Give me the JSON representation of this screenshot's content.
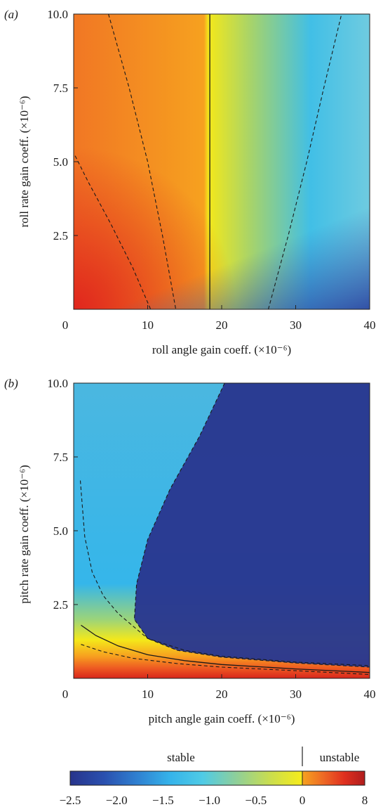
{
  "chart_data": [
    {
      "type": "heatmap",
      "panel_label": "(a)",
      "xlabel": "roll angle gain coeff. (×10⁻⁶)",
      "ylabel": "roll rate gain coeff. (×10⁻⁶)",
      "xlim": [
        0,
        40
      ],
      "ylim": [
        0,
        10.0
      ],
      "xticks": [
        "0",
        "10",
        "20",
        "30",
        "40"
      ],
      "yticks": [
        "2.5",
        "5.0",
        "7.5",
        "10.0"
      ],
      "grid": false,
      "solid_contour": {
        "label": "stability boundary",
        "points": [
          [
            18.4,
            0
          ],
          [
            18.4,
            10.0
          ]
        ]
      },
      "dashed_contours": [
        [
          [
            0.2,
            5.2
          ],
          [
            2,
            4.3
          ],
          [
            5,
            2.9
          ],
          [
            8,
            1.4
          ],
          [
            10.4,
            0
          ]
        ],
        [
          [
            4.7,
            10.0
          ],
          [
            7.5,
            7.5
          ],
          [
            10,
            5.0
          ],
          [
            12,
            2.5
          ],
          [
            13.8,
            0
          ]
        ],
        [
          [
            26.3,
            0
          ],
          [
            29,
            2.5
          ],
          [
            31.5,
            5.0
          ],
          [
            33.8,
            7.5
          ],
          [
            36.2,
            10.0
          ]
        ]
      ]
    },
    {
      "type": "heatmap",
      "panel_label": "(b)",
      "xlabel": "pitch angle gain coeff. (×10⁻⁶)",
      "ylabel": "pitch rate gain coeff. (×10⁻⁶)",
      "xlim": [
        0,
        40
      ],
      "ylim": [
        0,
        10.0
      ],
      "xticks": [
        "0",
        "10",
        "20",
        "30",
        "40"
      ],
      "yticks": [
        "2.5",
        "5.0",
        "7.5",
        "10.0"
      ],
      "grid": false,
      "solid_contour": {
        "label": "stability boundary",
        "points": [
          [
            1,
            1.8
          ],
          [
            3,
            1.45
          ],
          [
            6,
            1.1
          ],
          [
            10,
            0.8
          ],
          [
            15,
            0.6
          ],
          [
            20,
            0.47
          ],
          [
            30,
            0.32
          ],
          [
            40,
            0.2
          ]
        ]
      },
      "dashed_contours": [
        [
          [
            1,
            1.15
          ],
          [
            4,
            0.9
          ],
          [
            8,
            0.68
          ],
          [
            14,
            0.5
          ],
          [
            20,
            0.38
          ],
          [
            30,
            0.26
          ],
          [
            40,
            0.13
          ]
        ],
        [
          [
            0.9,
            6.7
          ],
          [
            1.5,
            4.8
          ],
          [
            2.5,
            3.6
          ],
          [
            4,
            2.8
          ],
          [
            6,
            2.2
          ],
          [
            10,
            1.35
          ],
          [
            15,
            0.95
          ],
          [
            20,
            0.75
          ],
          [
            30,
            0.55
          ],
          [
            40,
            0.43
          ]
        ],
        [
          [
            20.4,
            10.0
          ],
          [
            17,
            8.2
          ],
          [
            13,
            6.4
          ],
          [
            10,
            4.7
          ],
          [
            8.5,
            3.2
          ],
          [
            8.2,
            2.0
          ],
          [
            10,
            1.35
          ],
          [
            14,
            0.95
          ],
          [
            20,
            0.72
          ],
          [
            30,
            0.52
          ],
          [
            40,
            0.38
          ]
        ]
      ]
    }
  ],
  "colorbar": {
    "left_title": "stable",
    "right_title": "unstable",
    "tick_labels": [
      "−2.5",
      "−2.0",
      "−1.5",
      "−1.0",
      "−0.5",
      "0",
      "8"
    ],
    "stable_colors": [
      "#27348b",
      "#2a4fae",
      "#2f7fd0",
      "#35b3ea",
      "#4fcbe6",
      "#8ecf9a",
      "#c8dd50",
      "#f7ec1a"
    ],
    "unstable_colors": [
      "#f6a31f",
      "#ee6a25",
      "#e0301f",
      "#b01d1d"
    ]
  }
}
